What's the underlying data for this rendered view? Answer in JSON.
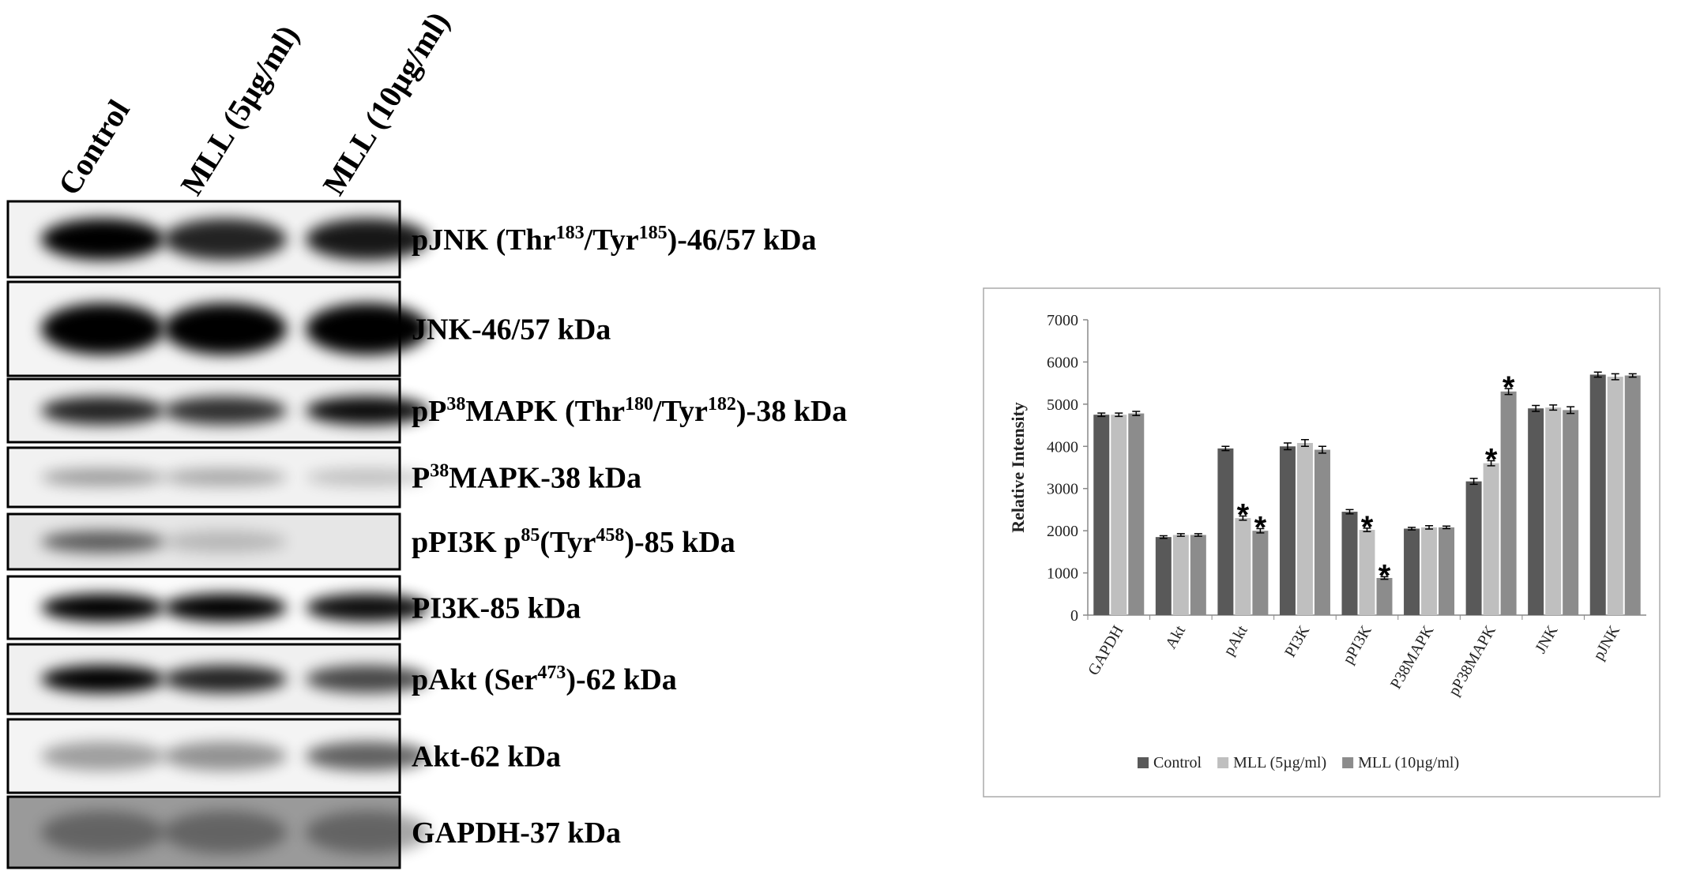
{
  "blot": {
    "lanes": [
      "Control",
      "MLL (5µg/ml)",
      "MLL (10µg/ml)"
    ],
    "rows": [
      {
        "label": [
          "pJNK (Thr",
          {
            "sup": "183"
          },
          "/Tyr",
          {
            "sup": "185"
          },
          ")-46/57 kDa"
        ]
      },
      {
        "label": [
          "JNK-46/57 kDa"
        ]
      },
      {
        "label": [
          "pP",
          {
            "sup": "38"
          },
          "MAPK (Thr",
          {
            "sup": "180"
          },
          "/Tyr",
          {
            "sup": "182"
          },
          ")-38 kDa"
        ]
      },
      {
        "label": [
          "P",
          {
            "sup": "38"
          },
          "MAPK-38 kDa"
        ]
      },
      {
        "label": [
          "pPI3K p",
          {
            "sup": "85"
          },
          "(Tyr",
          {
            "sup": "458"
          },
          ")-85 kDa"
        ]
      },
      {
        "label": [
          "PI3K-85 kDa"
        ]
      },
      {
        "label": [
          "pAkt (Ser",
          {
            "sup": "473"
          },
          ")-62 kDa"
        ]
      },
      {
        "label": [
          "Akt-62 kDa"
        ]
      },
      {
        "label": [
          "GAPDH-37 kDa"
        ]
      }
    ]
  },
  "chart_data": {
    "type": "bar",
    "y_label": "Relative Intensity",
    "categories": [
      "GAPDH",
      "Akt",
      "pAkt",
      "PI3K",
      "pPI3K",
      "P38MAPK",
      "pP38MAPK",
      "JNK",
      "pJNK"
    ],
    "series": [
      {
        "name": "Control",
        "color": "#595959",
        "values": [
          4750,
          1850,
          3950,
          4000,
          2450,
          2050,
          3170,
          4900,
          5700
        ],
        "errors": [
          40,
          30,
          50,
          80,
          50,
          30,
          70,
          70,
          60
        ],
        "annotations": [
          null,
          null,
          null,
          null,
          null,
          null,
          null,
          null,
          null
        ]
      },
      {
        "name": "MLL (5µg/ml)",
        "color": "#bfbfbf",
        "values": [
          4750,
          1900,
          2300,
          4080,
          2020,
          2080,
          3600,
          4920,
          5650
        ],
        "errors": [
          40,
          30,
          50,
          80,
          40,
          40,
          60,
          60,
          70
        ],
        "annotations": [
          null,
          null,
          "*",
          null,
          "*",
          null,
          "*",
          null,
          null
        ]
      },
      {
        "name": "MLL (10µg/ml)",
        "color": "#8c8c8c",
        "values": [
          4780,
          1900,
          2000,
          3920,
          880,
          2080,
          5300,
          4860,
          5680
        ],
        "errors": [
          50,
          30,
          50,
          80,
          30,
          30,
          70,
          80,
          40
        ],
        "annotations": [
          null,
          null,
          "*",
          null,
          "*",
          null,
          "*",
          null,
          null
        ]
      }
    ],
    "ylim": [
      0,
      7000
    ],
    "yticks": [
      0,
      1000,
      2000,
      3000,
      4000,
      5000,
      6000,
      7000
    ]
  }
}
